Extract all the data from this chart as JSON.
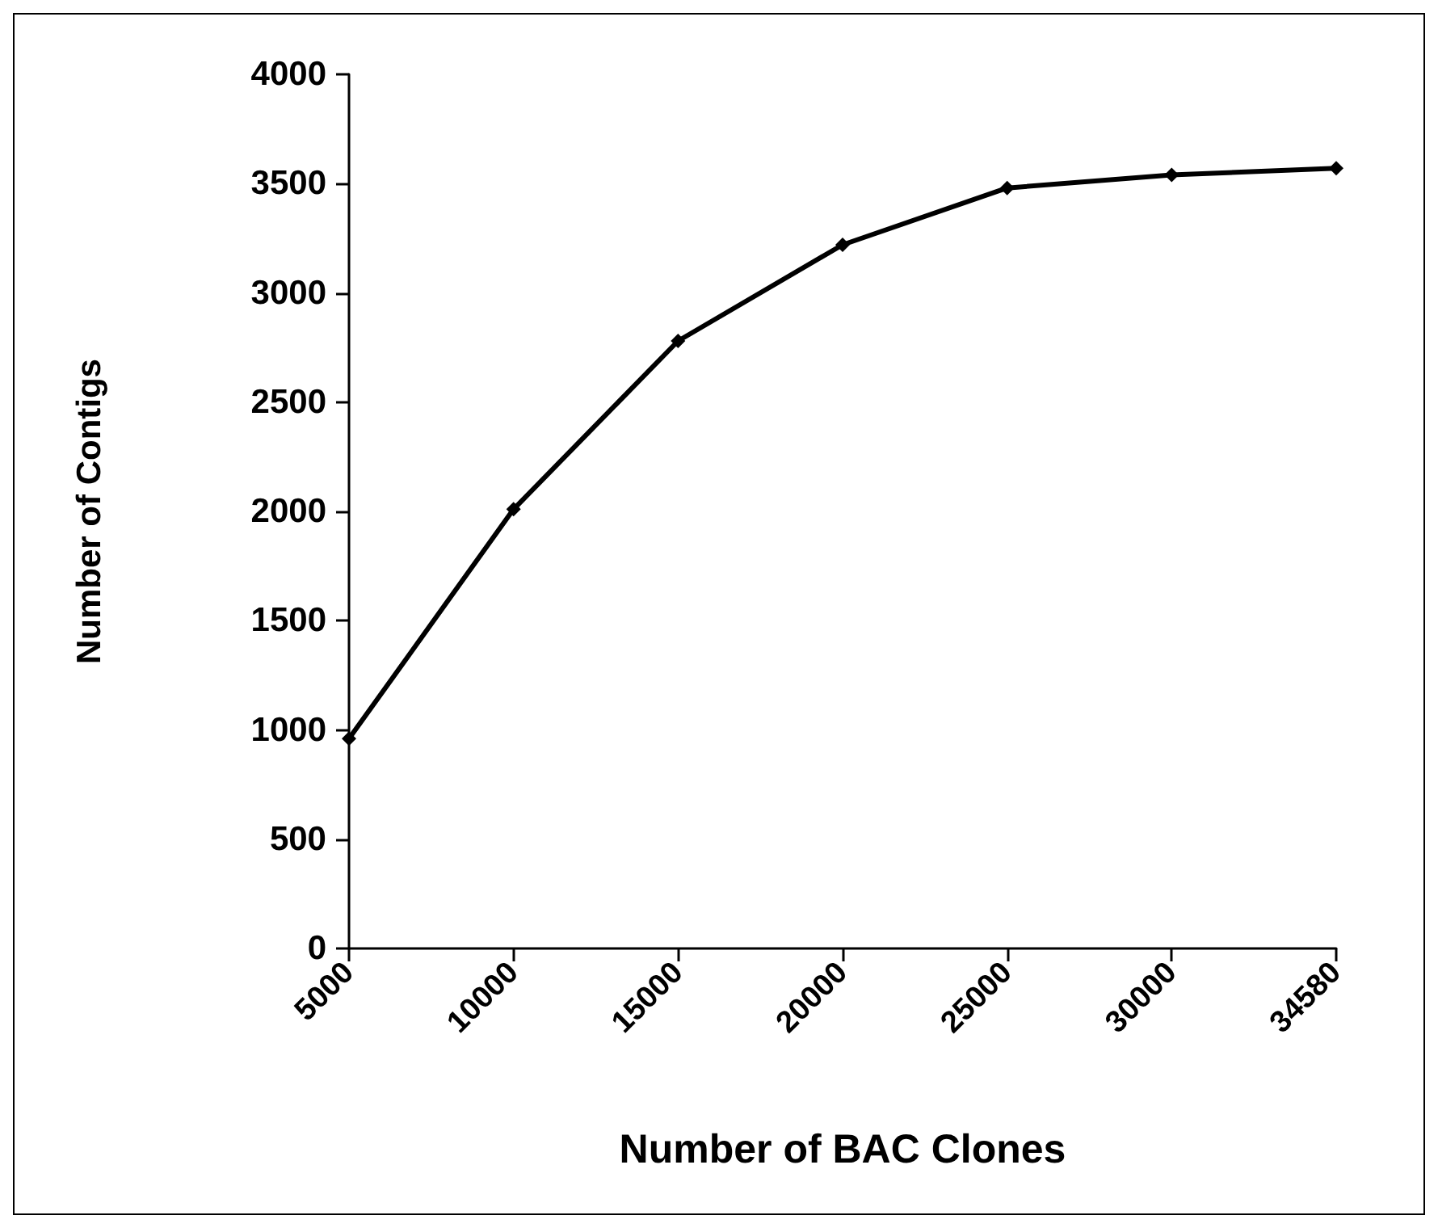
{
  "chart_data": {
    "type": "line",
    "xlabel": "Number of BAC Clones",
    "ylabel": "Number of Contigs",
    "categories": [
      "5000",
      "10000",
      "15000",
      "20000",
      "25000",
      "30000",
      "34580"
    ],
    "series": [
      {
        "color": "#000000",
        "values": [
          960,
          2010,
          2780,
          3220,
          3480,
          3540,
          3570
        ]
      }
    ],
    "ylim": [
      0,
      4000
    ],
    "yticks": [
      0,
      500,
      1000,
      1500,
      2000,
      2500,
      3000,
      3500,
      4000
    ],
    "grid": false,
    "marker": "diamond",
    "line_style": "solid"
  }
}
